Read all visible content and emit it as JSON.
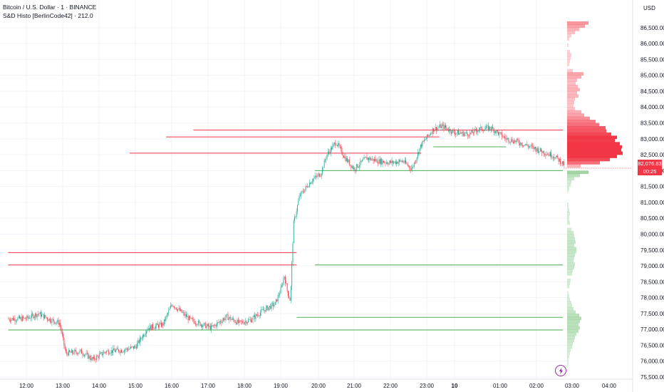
{
  "header": {
    "symbol_title": "Bitcoin / U.S. Dollar · 1 · BINANCE",
    "indicator_title": "S&D Histo [BerlinCode42] · 212.0"
  },
  "price_axis": {
    "currency": "USD",
    "labels": [
      "86,500.00",
      "86,000.00",
      "85,500.00",
      "85,000.00",
      "84,500.00",
      "84,000.00",
      "83,500.00",
      "83,000.00",
      "82,500.00",
      "82,000.00",
      "81,500.00",
      "81,000.00",
      "80,500.00",
      "80,000.00",
      "79,500.00",
      "79,000.00",
      "78,500.00",
      "78,000.00",
      "77,500.00",
      "77,000.00",
      "76,500.00",
      "76,000.00",
      "75,500.00"
    ]
  },
  "time_axis": {
    "labels": [
      "12:00",
      "13:00",
      "14:00",
      "15:00",
      "16:00",
      "17:00",
      "18:00",
      "19:00",
      "20:00",
      "21:00",
      "22:00",
      "23:00",
      "10",
      "01:00",
      "02:00",
      "03:00",
      "04:00"
    ]
  },
  "last_price": {
    "price": "82,076.83",
    "countdown": "00:25"
  },
  "colors": {
    "up": "#22ab94",
    "down": "#f23645",
    "supply_line": "#f23645",
    "demand_line": "#4caf50",
    "supply_histo": "#f23645",
    "demand_histo": "#4caf50"
  },
  "icons": {
    "replay": "lightning-icon"
  },
  "chart_data": {
    "type": "candlestick",
    "title": "Bitcoin / U.S. Dollar · 1 · BINANCE",
    "ylabel": "USD",
    "ylim": [
      75500,
      86700
    ],
    "x_ticks": [
      "12:00",
      "13:00",
      "14:00",
      "15:00",
      "16:00",
      "17:00",
      "18:00",
      "19:00",
      "20:00",
      "21:00",
      "22:00",
      "23:00",
      "10",
      "01:00",
      "02:00",
      "03:00",
      "04:00"
    ],
    "price_path": [
      [
        "11:30",
        77330
      ],
      [
        "12:00",
        77340
      ],
      [
        "12:20",
        77500
      ],
      [
        "12:40",
        77300
      ],
      [
        "12:55",
        77200
      ],
      [
        "13:05",
        76250
      ],
      [
        "13:30",
        76300
      ],
      [
        "13:50",
        76050
      ],
      [
        "14:10",
        76300
      ],
      [
        "14:40",
        76350
      ],
      [
        "15:00",
        76450
      ],
      [
        "15:20",
        77050
      ],
      [
        "15:45",
        77150
      ],
      [
        "16:00",
        77800
      ],
      [
        "16:15",
        77550
      ],
      [
        "16:30",
        77300
      ],
      [
        "16:50",
        77150
      ],
      [
        "17:05",
        77050
      ],
      [
        "17:30",
        77400
      ],
      [
        "17:50",
        77200
      ],
      [
        "18:10",
        77300
      ],
      [
        "18:30",
        77600
      ],
      [
        "18:50",
        77800
      ],
      [
        "19:00",
        78300
      ],
      [
        "19:05",
        78700
      ],
      [
        "19:10",
        78200
      ],
      [
        "19:15",
        77900
      ],
      [
        "19:20",
        80300
      ],
      [
        "19:30",
        81200
      ],
      [
        "19:50",
        81700
      ],
      [
        "20:05",
        81900
      ],
      [
        "20:15",
        82500
      ],
      [
        "20:30",
        82900
      ],
      [
        "20:45",
        82400
      ],
      [
        "21:00",
        82050
      ],
      [
        "21:20",
        82400
      ],
      [
        "21:40",
        82300
      ],
      [
        "22:00",
        82250
      ],
      [
        "22:20",
        82300
      ],
      [
        "22:35",
        82050
      ],
      [
        "22:50",
        82800
      ],
      [
        "23:10",
        83300
      ],
      [
        "23:25",
        83400
      ],
      [
        "23:45",
        83200
      ],
      [
        "00:10",
        83150
      ],
      [
        "00:25",
        83300
      ],
      [
        "00:45",
        83350
      ],
      [
        "01:10",
        83000
      ],
      [
        "01:30",
        82900
      ],
      [
        "01:50",
        82750
      ],
      [
        "02:10",
        82600
      ],
      [
        "02:30",
        82450
      ],
      [
        "02:45",
        82200
      ]
    ],
    "last_price": 82076.83,
    "supply_levels": [
      {
        "price": 83280,
        "from": "16:35",
        "to": "03:00"
      },
      {
        "price": 83060,
        "from": "15:50",
        "to": "23:20"
      },
      {
        "price": 82550,
        "from": "14:50",
        "to": "22:50"
      },
      {
        "price": 79420,
        "from": "11:30",
        "to": "19:25"
      },
      {
        "price": 79030,
        "from": "11:30",
        "to": "19:25"
      }
    ],
    "demand_levels": [
      {
        "price": 82750,
        "from": "23:10",
        "to": "01:10"
      },
      {
        "price": 82000,
        "from": "19:55",
        "to": "03:00"
      },
      {
        "price": 79030,
        "from": "19:55",
        "to": "03:00"
      },
      {
        "price": 77380,
        "from": "19:25",
        "to": "03:00"
      },
      {
        "price": 76980,
        "from": "11:30",
        "to": "03:00"
      }
    ],
    "supply_histogram": [
      [
        86650,
        30
      ],
      [
        86550,
        25
      ],
      [
        86450,
        17
      ],
      [
        86350,
        11
      ],
      [
        86250,
        6
      ],
      [
        86150,
        3
      ],
      [
        85950,
        2
      ],
      [
        85750,
        4
      ],
      [
        85650,
        6
      ],
      [
        85550,
        5
      ],
      [
        85450,
        4
      ],
      [
        85350,
        3
      ],
      [
        85150,
        8
      ],
      [
        85050,
        23
      ],
      [
        84950,
        20
      ],
      [
        84850,
        14
      ],
      [
        84750,
        12
      ],
      [
        84650,
        15
      ],
      [
        84550,
        18
      ],
      [
        84450,
        14
      ],
      [
        84350,
        16
      ],
      [
        84250,
        11
      ],
      [
        84150,
        10
      ],
      [
        84050,
        9
      ],
      [
        83950,
        11
      ],
      [
        83850,
        20
      ],
      [
        83750,
        24
      ],
      [
        83650,
        32
      ],
      [
        83550,
        40
      ],
      [
        83450,
        45
      ],
      [
        83350,
        54
      ],
      [
        83250,
        55
      ],
      [
        83150,
        62
      ],
      [
        83050,
        70
      ],
      [
        82950,
        67
      ],
      [
        82850,
        74
      ],
      [
        82750,
        77
      ],
      [
        82650,
        76
      ],
      [
        82550,
        78
      ],
      [
        82450,
        70
      ],
      [
        82350,
        60
      ],
      [
        82250,
        46
      ],
      [
        82150,
        19
      ]
    ],
    "demand_histogram": [
      [
        81950,
        30
      ],
      [
        81850,
        18
      ],
      [
        81750,
        10
      ],
      [
        81650,
        6
      ],
      [
        81550,
        5
      ],
      [
        81450,
        3
      ],
      [
        81350,
        2
      ],
      [
        80950,
        2
      ],
      [
        80850,
        2
      ],
      [
        80750,
        3
      ],
      [
        80650,
        4
      ],
      [
        80550,
        3
      ],
      [
        80450,
        3
      ],
      [
        80350,
        4
      ],
      [
        80150,
        6
      ],
      [
        80050,
        9
      ],
      [
        79950,
        10
      ],
      [
        79850,
        11
      ],
      [
        79750,
        12
      ],
      [
        79650,
        10
      ],
      [
        79550,
        13
      ],
      [
        79450,
        13
      ],
      [
        79350,
        11
      ],
      [
        79250,
        10
      ],
      [
        79150,
        9
      ],
      [
        79050,
        11
      ],
      [
        78950,
        10
      ],
      [
        78850,
        8
      ],
      [
        78750,
        7
      ],
      [
        78550,
        5
      ],
      [
        78450,
        4
      ],
      [
        78350,
        3
      ],
      [
        78150,
        2
      ],
      [
        78050,
        3
      ],
      [
        77950,
        4
      ],
      [
        77850,
        6
      ],
      [
        77750,
        7
      ],
      [
        77650,
        9
      ],
      [
        77550,
        12
      ],
      [
        77450,
        17
      ],
      [
        77350,
        20
      ],
      [
        77250,
        18
      ],
      [
        77150,
        16
      ],
      [
        77050,
        18
      ],
      [
        76950,
        16
      ],
      [
        76850,
        13
      ],
      [
        76750,
        11
      ],
      [
        76650,
        10
      ],
      [
        76550,
        8
      ],
      [
        76450,
        7
      ],
      [
        76350,
        5
      ],
      [
        76250,
        4
      ],
      [
        76150,
        3
      ],
      [
        76050,
        2
      ],
      [
        75950,
        2
      ],
      [
        75850,
        1
      ]
    ]
  }
}
